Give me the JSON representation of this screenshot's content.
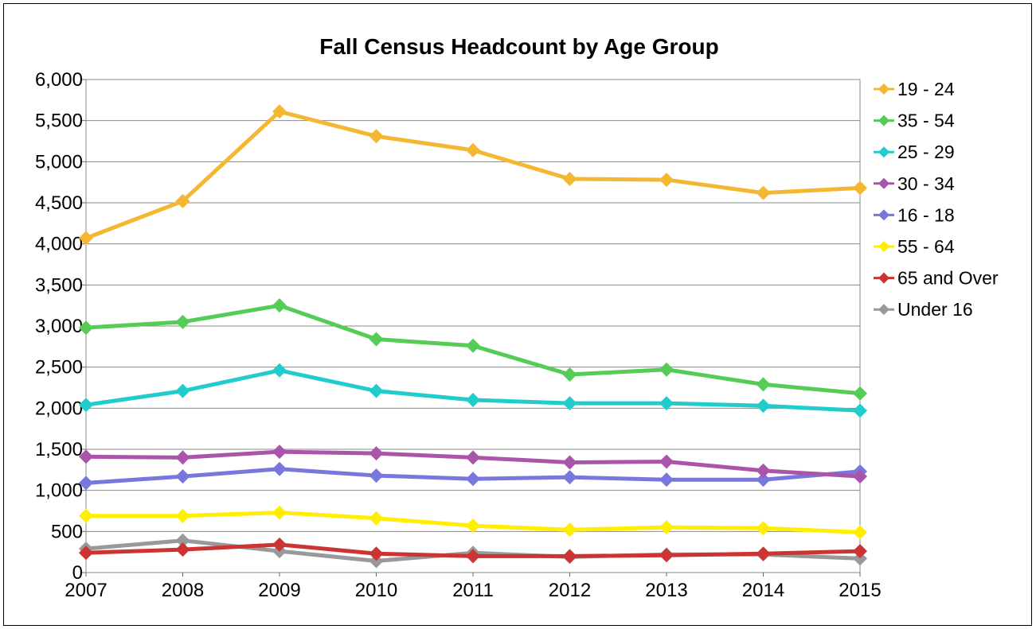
{
  "chart_data": {
    "type": "line",
    "title": "Fall Census Headcount by Age Group",
    "xlabel": "",
    "ylabel": "",
    "x": [
      "2007",
      "2008",
      "2009",
      "2010",
      "2011",
      "2012",
      "2013",
      "2014",
      "2015"
    ],
    "ylim": [
      0,
      6000
    ],
    "yticks": [
      "0",
      "500",
      "1,000",
      "1,500",
      "2,000",
      "2,500",
      "3,000",
      "3,500",
      "4,000",
      "4,500",
      "5,000",
      "5,500",
      "6,000"
    ],
    "grid": true,
    "legend_position": "right",
    "series": [
      {
        "name": "19 - 24",
        "color": "#F4B731",
        "values": [
          4070,
          4520,
          5610,
          5310,
          5140,
          4790,
          4780,
          4620,
          4680
        ]
      },
      {
        "name": "35 - 54",
        "color": "#55CC55",
        "values": [
          2980,
          3050,
          3250,
          2840,
          2760,
          2410,
          2470,
          2290,
          2180
        ]
      },
      {
        "name": "25 - 29",
        "color": "#22CCCC",
        "values": [
          2040,
          2210,
          2460,
          2210,
          2100,
          2060,
          2060,
          2030,
          1970
        ]
      },
      {
        "name": "30 - 34",
        "color": "#AA55AA",
        "values": [
          1410,
          1400,
          1470,
          1450,
          1400,
          1340,
          1350,
          1240,
          1170
        ]
      },
      {
        "name": "16 - 18",
        "color": "#7777DD",
        "values": [
          1090,
          1170,
          1260,
          1180,
          1140,
          1160,
          1130,
          1130,
          1230
        ]
      },
      {
        "name": "55 - 64",
        "color": "#FFEE00",
        "values": [
          690,
          690,
          730,
          660,
          570,
          520,
          550,
          540,
          490
        ]
      },
      {
        "name": "65 and Over",
        "color": "#CC3333",
        "values": [
          240,
          280,
          340,
          230,
          200,
          200,
          210,
          230,
          260
        ]
      },
      {
        "name": "Under 16",
        "color": "#999999",
        "values": [
          290,
          390,
          260,
          140,
          240,
          190,
          220,
          220,
          170
        ]
      }
    ]
  }
}
